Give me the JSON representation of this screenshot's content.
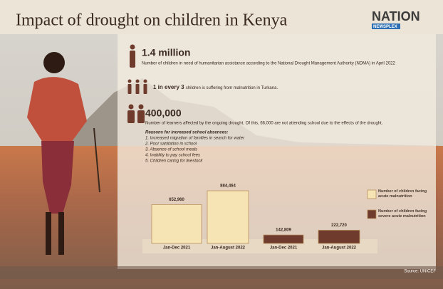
{
  "header": {
    "title": "Impact of drought on children in Kenya",
    "logo": "NATION",
    "logo_sub": "NEWSPLEX"
  },
  "stats": [
    {
      "figure": "1.4 million",
      "text": "Number of children in need of humanitarian assistance according to the National Drought Management Authority (NDMA) in April 2022"
    },
    {
      "figure": "1 in every 3",
      "text": "children is suffering from malnutrition in Turkana."
    },
    {
      "figure": "400,000",
      "text": "Number of learners affected by the ongoing drought. Of this, 66,000 are not attending school due to the effects of the drought."
    }
  ],
  "reasons": {
    "title": "Reasons for increased school absences:",
    "items": [
      "1. Increased migration of families in search for water",
      "2. Poor sanitation in school",
      "3. Absence of school meals",
      "4. Inability to pay school fees",
      "5. Children caring for livestock"
    ]
  },
  "chart_data": {
    "type": "bar",
    "categories": [
      "Jan-Dec 2021",
      "Jan-August 2022",
      "Jan-Dec 2021",
      "Jan-August 2022"
    ],
    "series": [
      {
        "name": "Number of children facing acute malnutrition",
        "color": "#f6e4b4",
        "values": [
          652960,
          884464,
          null,
          null
        ],
        "value_labels": [
          "652,960",
          "884,464",
          null,
          null
        ]
      },
      {
        "name": "Number of children facing severe acute malnutrition",
        "color": "#6e3b2d",
        "values": [
          null,
          null,
          142809,
          222720
        ],
        "value_labels": [
          null,
          null,
          "142,809",
          "222,720"
        ]
      }
    ]
  },
  "source": "Source: UNICEF"
}
